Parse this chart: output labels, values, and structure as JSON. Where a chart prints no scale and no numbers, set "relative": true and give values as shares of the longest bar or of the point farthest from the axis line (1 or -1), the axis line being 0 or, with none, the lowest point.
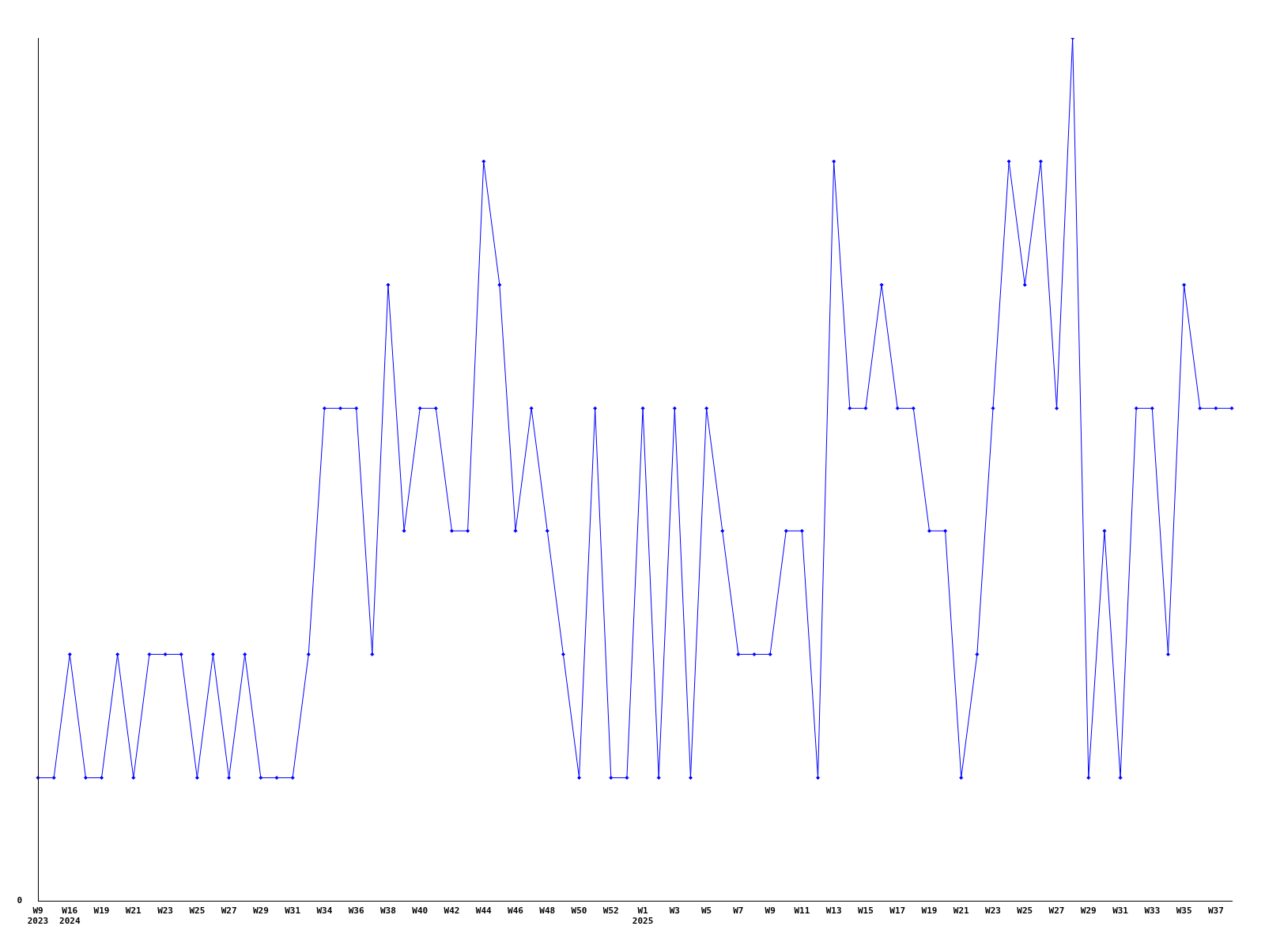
{
  "chart_data": {
    "type": "line",
    "relative": true,
    "annotations": [
      "0"
    ],
    "marker": "diamond",
    "grid": false,
    "legend": false,
    "categories": [
      "W9\n2023",
      null,
      "W16\n2024",
      null,
      "W19",
      null,
      "W21",
      null,
      "W23",
      null,
      "W25",
      null,
      "W27",
      null,
      "W29",
      null,
      "W31",
      null,
      "W34",
      null,
      "W36",
      null,
      "W38",
      null,
      "W40",
      null,
      "W42",
      null,
      "W44",
      null,
      "W46",
      null,
      "W48",
      null,
      "W50",
      null,
      "W52",
      null,
      "W1\n2025",
      null,
      "W3",
      null,
      "W5",
      null,
      "W7",
      null,
      "W9",
      null,
      "W11",
      null,
      "W13",
      null,
      "W15",
      null,
      "W17",
      null,
      "W19",
      null,
      "W21",
      null,
      "W23",
      null,
      "W25",
      null,
      "W27",
      null,
      "W29",
      null,
      "W31",
      null,
      "W33",
      null,
      "W35",
      null,
      "W37",
      null
    ],
    "series": [
      {
        "color": "#0000ff",
        "values": [
          0.143,
          0.143,
          0.286,
          0.143,
          0.143,
          0.286,
          0.143,
          0.286,
          0.286,
          0.286,
          0.143,
          0.286,
          0.143,
          0.286,
          0.143,
          0.143,
          0.143,
          0.286,
          0.571,
          0.571,
          0.571,
          0.286,
          0.714,
          0.429,
          0.571,
          0.571,
          0.429,
          0.429,
          0.857,
          0.714,
          0.429,
          0.571,
          0.429,
          0.286,
          0.143,
          0.571,
          0.143,
          0.143,
          0.571,
          0.143,
          0.571,
          0.143,
          0.571,
          0.429,
          0.286,
          0.286,
          0.286,
          0.429,
          0.429,
          0.143,
          0.857,
          0.571,
          0.571,
          0.714,
          0.571,
          0.571,
          0.429,
          0.429,
          0.143,
          0.286,
          0.571,
          0.857,
          0.714,
          0.857,
          0.571,
          1,
          0.143,
          0.429,
          0.143,
          0.571,
          0.571,
          0.286,
          0.714,
          0.571,
          0.571,
          0.571
        ]
      }
    ]
  }
}
